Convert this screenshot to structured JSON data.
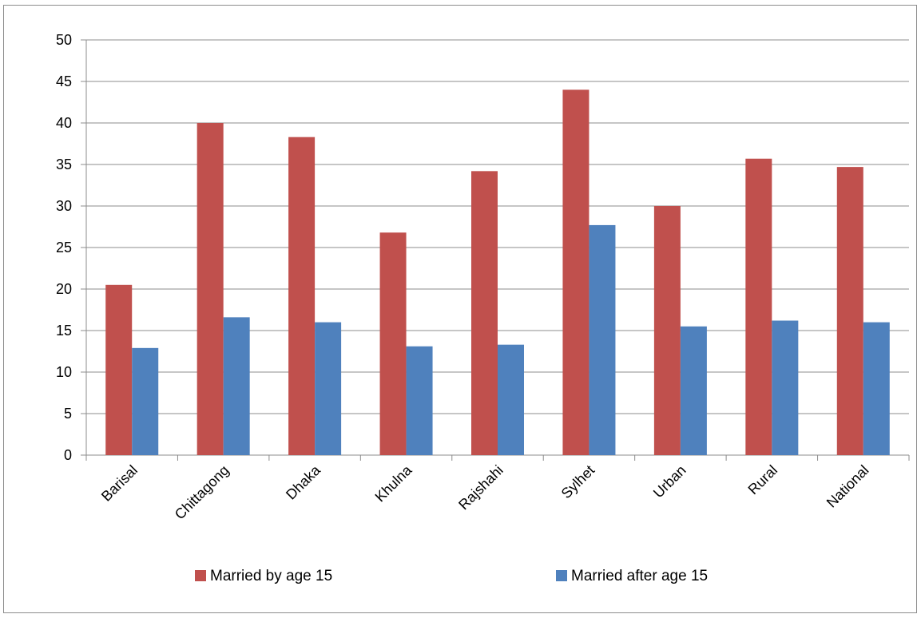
{
  "chart_data": {
    "type": "bar",
    "categories": [
      "Barisal",
      "Chittagong",
      "Dhaka",
      "Khulna",
      "Rajshahi",
      "Sylhet",
      "Urban",
      "Rural",
      "National"
    ],
    "series": [
      {
        "name": "Married by age 15",
        "color": "#c0504d",
        "values": [
          20.5,
          40.0,
          38.3,
          26.8,
          34.2,
          44.0,
          30.0,
          35.7,
          34.7
        ]
      },
      {
        "name": "Married after age 15",
        "color": "#4f81bd",
        "values": [
          12.9,
          16.6,
          16.0,
          13.1,
          13.3,
          27.7,
          15.5,
          16.2,
          16.0
        ]
      }
    ],
    "ylim": [
      0,
      50
    ],
    "yticks": [
      0,
      5,
      10,
      15,
      20,
      25,
      30,
      35,
      40,
      45,
      50
    ],
    "grid": true,
    "legend_position": "bottom",
    "title": "",
    "xlabel": "",
    "ylabel": ""
  }
}
